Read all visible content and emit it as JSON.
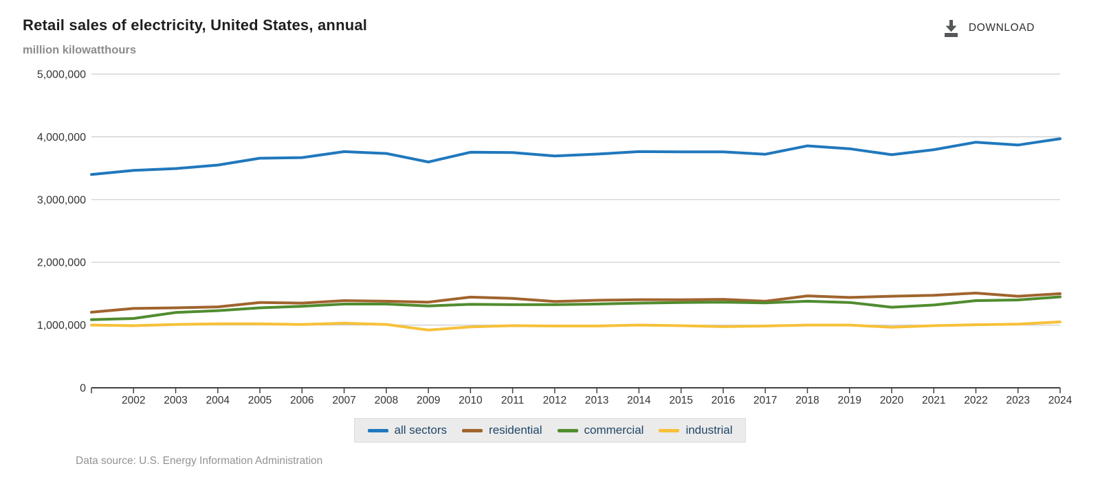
{
  "header": {
    "title": "Retail sales of electricity, United States, annual",
    "unit": "million kilowatthours",
    "download_label": "DOWNLOAD"
  },
  "footer": {
    "source": "Data source: U.S. Energy Information Administration"
  },
  "colors": {
    "grid": "#cccccc",
    "axis": "#404040",
    "tick_label": "#333333",
    "download_icon": "#54585a",
    "legend_text": "#1f4668",
    "legend_bg": "#ebebeb"
  },
  "chart_data": {
    "type": "line",
    "title": "Retail sales of electricity, United States, annual",
    "xlabel": "",
    "ylabel": "million kilowatthours",
    "x": [
      2001,
      2002,
      2003,
      2004,
      2005,
      2006,
      2007,
      2008,
      2009,
      2010,
      2011,
      2012,
      2013,
      2014,
      2015,
      2016,
      2017,
      2018,
      2019,
      2020,
      2021,
      2022,
      2023,
      2024
    ],
    "x_ticks": [
      2002,
      2003,
      2004,
      2005,
      2006,
      2007,
      2008,
      2009,
      2010,
      2011,
      2012,
      2013,
      2014,
      2015,
      2016,
      2017,
      2018,
      2019,
      2020,
      2021,
      2022,
      2023,
      2024
    ],
    "xlim": [
      2001,
      2024
    ],
    "ylim": [
      0,
      5000000
    ],
    "y_ticks": [
      0,
      1000000,
      2000000,
      3000000,
      4000000,
      5000000
    ],
    "grid": "horizontal",
    "legend_position": "bottom-center",
    "series": [
      {
        "name": "all sectors",
        "color": "#2078bd",
        "values": [
          3400000,
          3465000,
          3495000,
          3550000,
          3660000,
          3670000,
          3765000,
          3735000,
          3600000,
          3755000,
          3750000,
          3695000,
          3725000,
          3765000,
          3760000,
          3762000,
          3723000,
          3857000,
          3811000,
          3715000,
          3795000,
          3915000,
          3870000,
          3970000
        ]
      },
      {
        "name": "residential",
        "color": "#a0642e",
        "values": [
          1205000,
          1265000,
          1275000,
          1290000,
          1360000,
          1350000,
          1390000,
          1380000,
          1365000,
          1445000,
          1425000,
          1375000,
          1395000,
          1405000,
          1404000,
          1410000,
          1380000,
          1465000,
          1440000,
          1460000,
          1475000,
          1510000,
          1460000,
          1500000
        ]
      },
      {
        "name": "commercial",
        "color": "#508c2f",
        "values": [
          1085000,
          1105000,
          1200000,
          1230000,
          1275000,
          1300000,
          1335000,
          1335000,
          1305000,
          1330000,
          1325000,
          1325000,
          1335000,
          1350000,
          1360000,
          1365000,
          1355000,
          1380000,
          1360000,
          1285000,
          1320000,
          1390000,
          1400000,
          1450000
        ]
      },
      {
        "name": "industrial",
        "color": "#f6c13a",
        "values": [
          1000000,
          990000,
          1010000,
          1020000,
          1020000,
          1010000,
          1030000,
          1010000,
          920000,
          970000,
          990000,
          985000,
          985000,
          1000000,
          990000,
          975000,
          985000,
          1000000,
          1000000,
          965000,
          990000,
          1005000,
          1015000,
          1050000
        ]
      }
    ]
  }
}
